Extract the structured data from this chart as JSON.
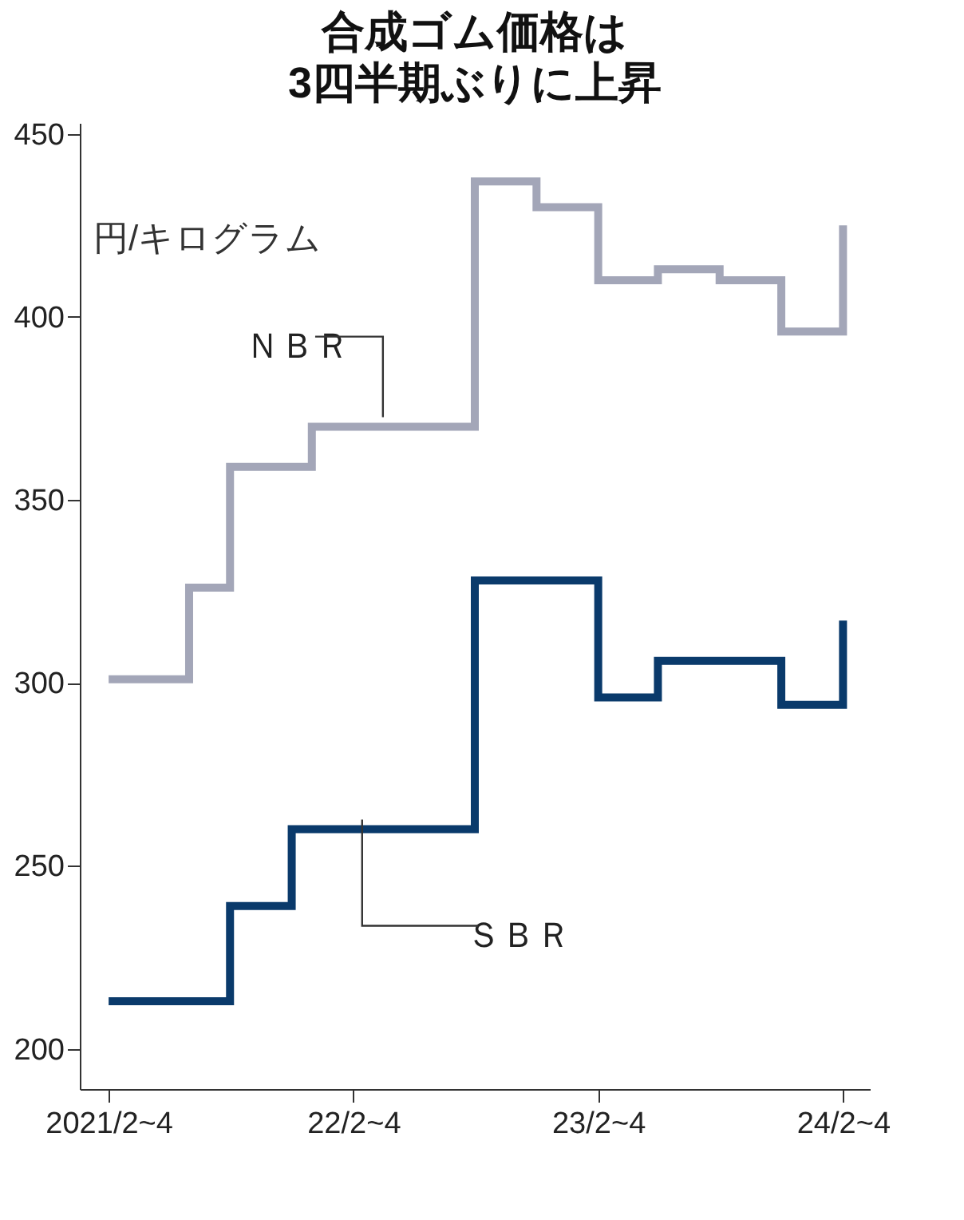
{
  "chart_data": {
    "type": "step",
    "title": "合成ゴム価格は\n3四半期ぶりに上昇",
    "ylabel": "円/キログラム",
    "xlim": [
      "2020-12-20",
      "2024-03-12"
    ],
    "xticks": [
      {
        "value": "2021-02",
        "label": "2021/2~4"
      },
      {
        "value": "2022-02",
        "label": "22/2~4"
      },
      {
        "value": "2023-02",
        "label": "23/2~4"
      },
      {
        "value": "2024-02",
        "label": "24/2~4"
      }
    ],
    "ylim": [
      189,
      453
    ],
    "yticks": [
      200,
      250,
      300,
      350,
      400,
      450
    ],
    "series": [
      {
        "name": "ＮＢＲ",
        "color": "#a3a6b8",
        "x": [
          "2021-02",
          "2021-06",
          "2021-08",
          "2021-12",
          "2022-08",
          "2022-11",
          "2023-02",
          "2023-05",
          "2023-08",
          "2023-11",
          "2024-02"
        ],
        "values": [
          301,
          326,
          359,
          370,
          437,
          430,
          410,
          413,
          410,
          396,
          425
        ]
      },
      {
        "name": "ＳＢＲ",
        "color": "#0a3a6b",
        "x": [
          "2021-02",
          "2021-08",
          "2021-11",
          "2022-08",
          "2023-02",
          "2023-05",
          "2023-11",
          "2024-02"
        ],
        "values": [
          213,
          239,
          260,
          328,
          296,
          306,
          294,
          317
        ]
      }
    ]
  }
}
